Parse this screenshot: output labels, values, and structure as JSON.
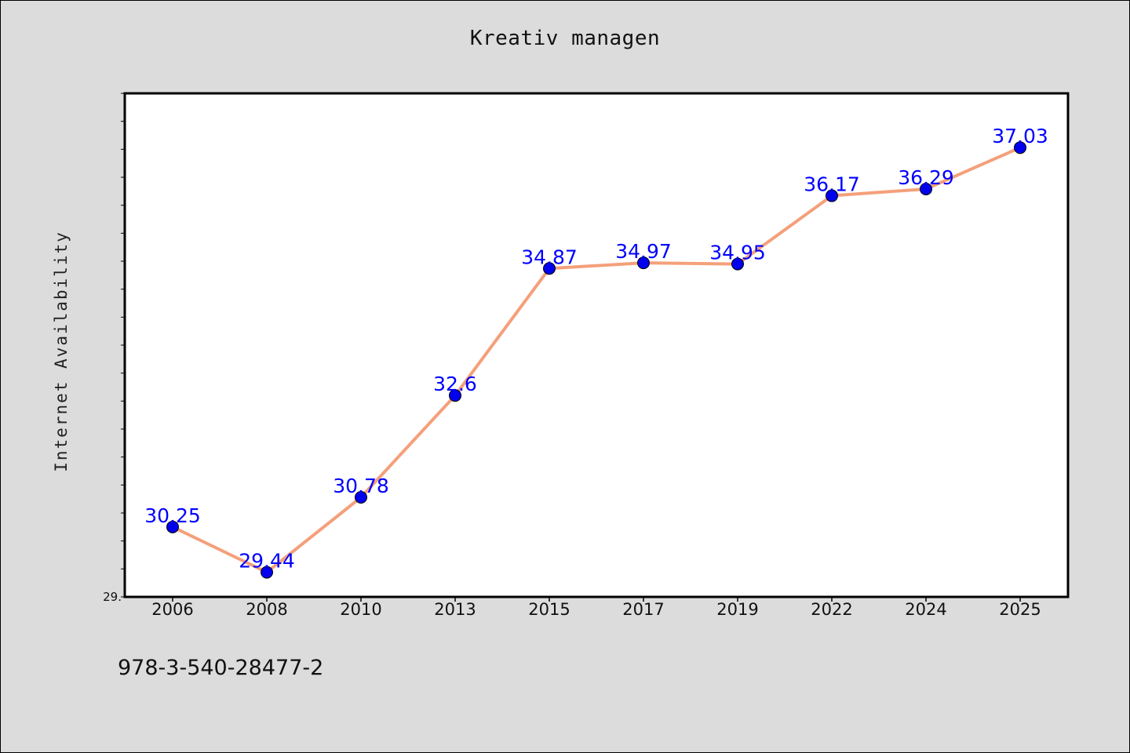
{
  "chart_data": {
    "type": "line",
    "title": "Kreativ managen",
    "xlabel": "",
    "ylabel": "Internet Availability",
    "categories": [
      "2006",
      "2008",
      "2010",
      "2013",
      "2015",
      "2017",
      "2019",
      "2022",
      "2024",
      "2025"
    ],
    "series": [
      {
        "values": [
          30.25,
          29.44,
          30.78,
          32.6,
          34.87,
          34.97,
          34.95,
          36.17,
          36.29,
          37.03
        ],
        "labels": [
          "30.25",
          "29.44",
          "30.78",
          "32.6",
          "34.87",
          "34.97",
          "34.95",
          "36.17",
          "36.29",
          "37.03"
        ],
        "line_color": "#f4a07a",
        "marker_color": "#0000ee"
      }
    ],
    "ylim": [
      29.0,
      38.0
    ],
    "y_tick_labels": [
      "29."
    ],
    "grid": false,
    "legend": "none"
  },
  "footnote": "978-3-540-28477-2",
  "colors": {
    "background": "#dcdcdc",
    "plot_background": "#ffffff",
    "data_label": "#0000ff"
  }
}
